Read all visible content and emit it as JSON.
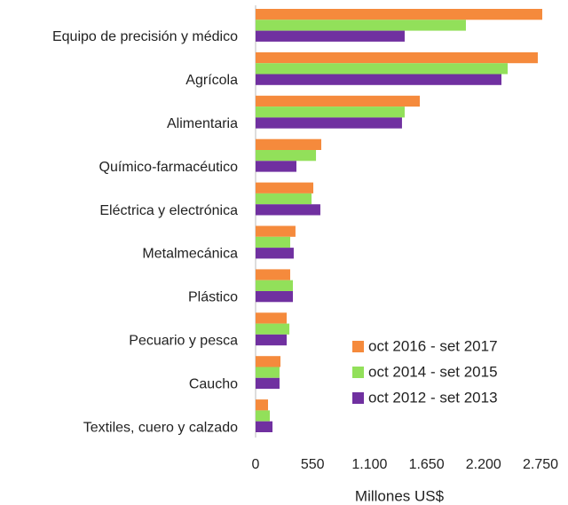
{
  "chart_data": {
    "type": "bar",
    "orientation": "horizontal",
    "x_label": "Millones US$",
    "categories": [
      "Equipo de precisión y médico",
      "Agrícola",
      "Alimentaria",
      "Químico-farmacéutico",
      "Eléctrica y electrónica",
      "Metalmecánica",
      "Plástico",
      "Pecuario y pesca",
      "Caucho",
      "Textiles, cuero y calzado"
    ],
    "series": [
      {
        "name": "oct 2016 - set 2017",
        "color": "#f58a3c",
        "values": [
          2767,
          2724,
          1585,
          634,
          557,
          385,
          334,
          300,
          240,
          120
        ]
      },
      {
        "name": "oct 2014 - set 2015",
        "color": "#92e05a",
        "values": [
          2030,
          2433,
          1439,
          583,
          540,
          334,
          360,
          326,
          231,
          137
        ]
      },
      {
        "name": "oct 2012 - set 2013",
        "color": "#7030a0",
        "values": [
          1439,
          2373,
          1413,
          394,
          625,
          368,
          360,
          300,
          231,
          163
        ]
      }
    ],
    "xlim": [
      0,
      2800
    ],
    "xticks": [
      0,
      550,
      {
        "value": 1100,
        "label": "1.100"
      },
      {
        "value": 1650,
        "label": "1.650"
      },
      {
        "value": 2200,
        "label": "2.200"
      },
      {
        "value": 2750,
        "label": "2.750"
      }
    ],
    "legend": "lower right"
  }
}
